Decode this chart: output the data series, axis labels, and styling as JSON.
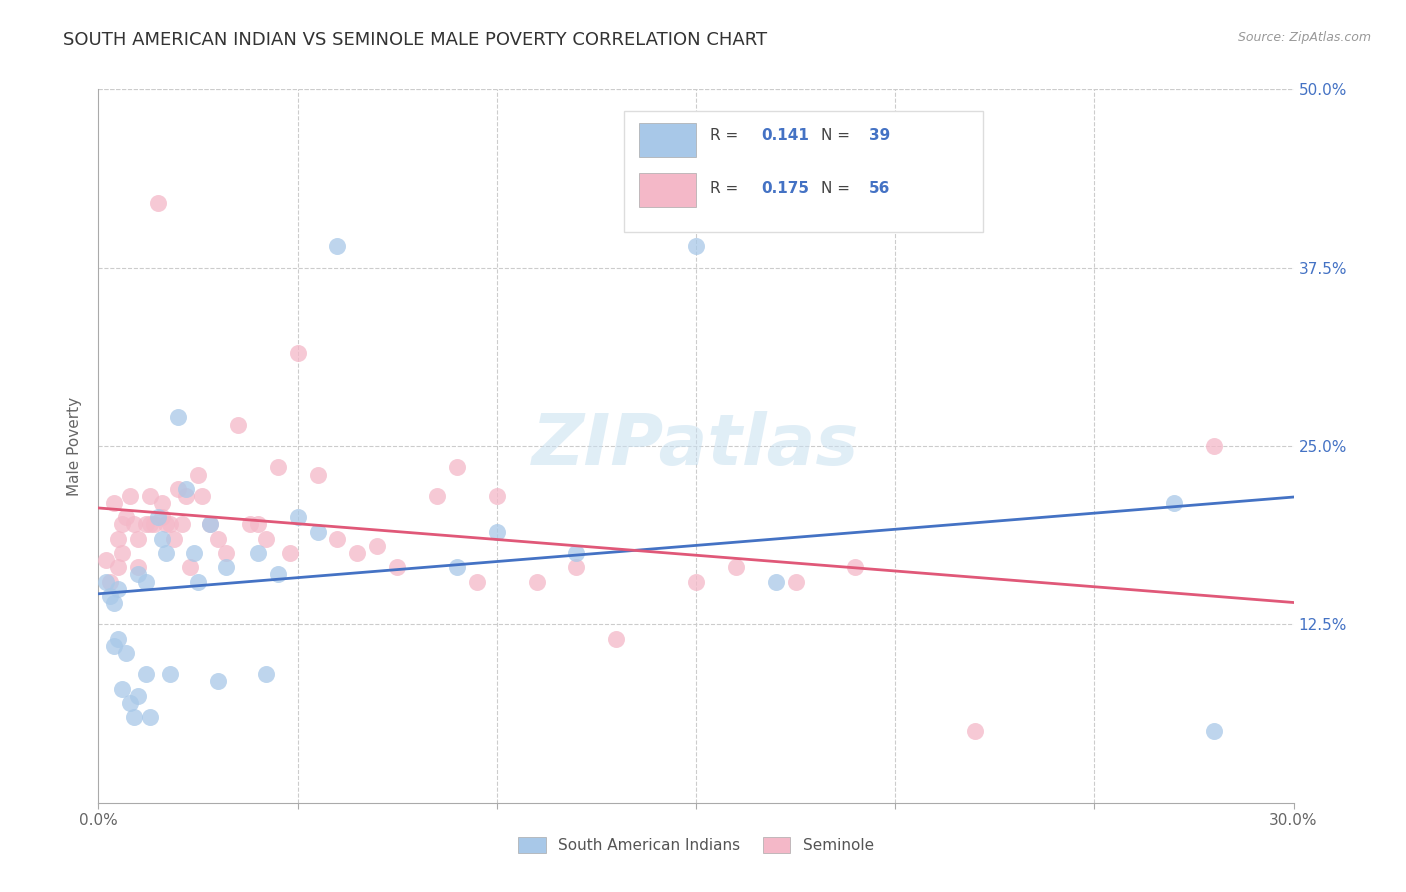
{
  "title": "SOUTH AMERICAN INDIAN VS SEMINOLE MALE POVERTY CORRELATION CHART",
  "source": "Source: ZipAtlas.com",
  "ylabel": "Male Poverty",
  "xlim": [
    0.0,
    0.3
  ],
  "ylim": [
    0.0,
    0.5
  ],
  "ytick_labels_right": [
    "50.0%",
    "37.5%",
    "25.0%",
    "12.5%"
  ],
  "ytick_values_right": [
    0.5,
    0.375,
    0.25,
    0.125
  ],
  "legend_blue_label": "South American Indians",
  "legend_pink_label": "Seminole",
  "r_blue": 0.141,
  "n_blue": 39,
  "r_pink": 0.175,
  "n_pink": 56,
  "blue_color": "#A8C8E8",
  "pink_color": "#F4B8C8",
  "blue_line_color": "#4472C4",
  "pink_line_color": "#E05878",
  "blue_x": [
    0.002,
    0.003,
    0.004,
    0.004,
    0.005,
    0.005,
    0.006,
    0.007,
    0.008,
    0.009,
    0.01,
    0.01,
    0.012,
    0.012,
    0.013,
    0.015,
    0.016,
    0.017,
    0.018,
    0.02,
    0.022,
    0.024,
    0.025,
    0.028,
    0.03,
    0.032,
    0.04,
    0.042,
    0.045,
    0.05,
    0.055,
    0.06,
    0.09,
    0.1,
    0.12,
    0.15,
    0.17,
    0.27,
    0.28
  ],
  "blue_y": [
    0.155,
    0.145,
    0.14,
    0.11,
    0.15,
    0.115,
    0.08,
    0.105,
    0.07,
    0.06,
    0.16,
    0.075,
    0.155,
    0.09,
    0.06,
    0.2,
    0.185,
    0.175,
    0.09,
    0.27,
    0.22,
    0.175,
    0.155,
    0.195,
    0.085,
    0.165,
    0.175,
    0.09,
    0.16,
    0.2,
    0.19,
    0.39,
    0.165,
    0.19,
    0.175,
    0.39,
    0.155,
    0.21,
    0.05
  ],
  "pink_x": [
    0.002,
    0.003,
    0.004,
    0.005,
    0.005,
    0.006,
    0.006,
    0.007,
    0.008,
    0.009,
    0.01,
    0.01,
    0.012,
    0.013,
    0.013,
    0.014,
    0.015,
    0.016,
    0.016,
    0.017,
    0.018,
    0.019,
    0.02,
    0.021,
    0.022,
    0.023,
    0.025,
    0.026,
    0.028,
    0.03,
    0.032,
    0.035,
    0.038,
    0.04,
    0.042,
    0.045,
    0.048,
    0.05,
    0.055,
    0.06,
    0.065,
    0.07,
    0.075,
    0.085,
    0.09,
    0.095,
    0.1,
    0.11,
    0.12,
    0.13,
    0.15,
    0.16,
    0.175,
    0.19,
    0.22,
    0.28
  ],
  "pink_y": [
    0.17,
    0.155,
    0.21,
    0.185,
    0.165,
    0.195,
    0.175,
    0.2,
    0.215,
    0.195,
    0.185,
    0.165,
    0.195,
    0.195,
    0.215,
    0.195,
    0.42,
    0.21,
    0.2,
    0.195,
    0.195,
    0.185,
    0.22,
    0.195,
    0.215,
    0.165,
    0.23,
    0.215,
    0.195,
    0.185,
    0.175,
    0.265,
    0.195,
    0.195,
    0.185,
    0.235,
    0.175,
    0.315,
    0.23,
    0.185,
    0.175,
    0.18,
    0.165,
    0.215,
    0.235,
    0.155,
    0.215,
    0.155,
    0.165,
    0.115,
    0.155,
    0.165,
    0.155,
    0.165,
    0.05,
    0.25
  ]
}
